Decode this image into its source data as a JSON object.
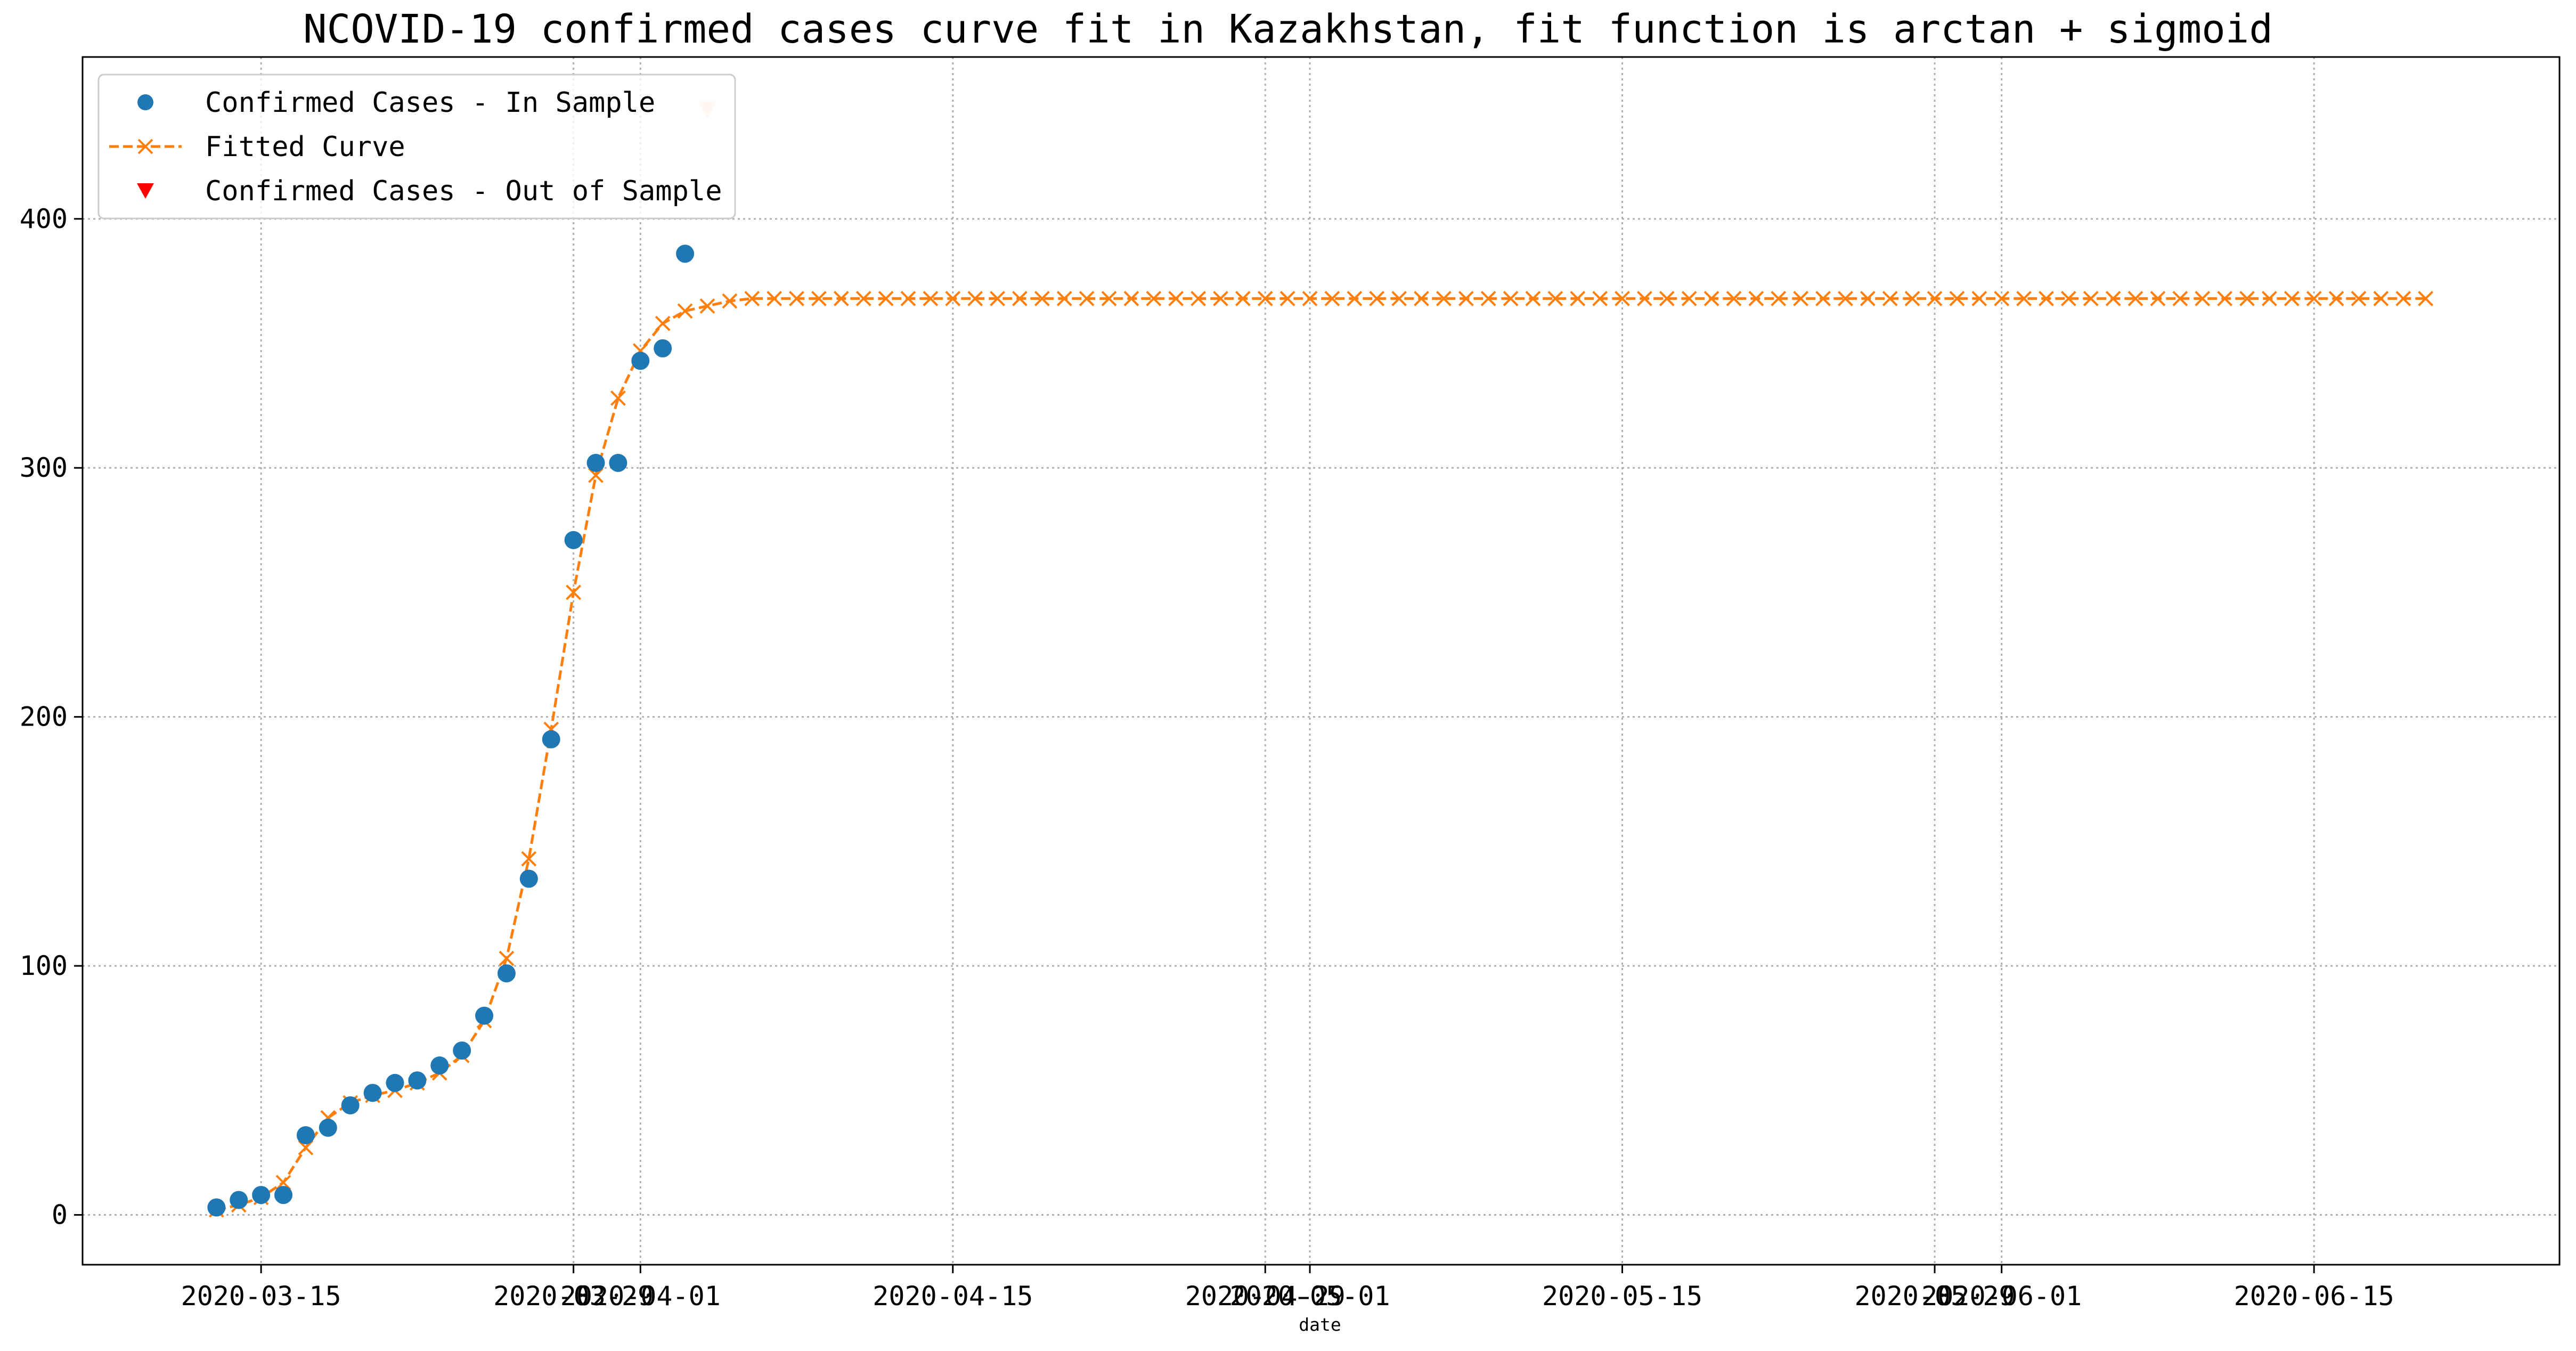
{
  "chart_data": {
    "type": "line",
    "title": "NCOVID-19 confirmed cases curve fit in Kazakhstan, fit function is arctan + sigmoid",
    "xlabel": "date",
    "ylabel": "",
    "x_type": "date",
    "xlim": [
      "2020-03-07",
      "2020-06-26"
    ],
    "ylim": [
      -20,
      465
    ],
    "grid": true,
    "legend_position": "top-left",
    "x_ticks": [
      {
        "value": "2020-03-15",
        "label": "2020-03-15"
      },
      {
        "value": "2020-03-29",
        "label": "2020-03-29"
      },
      {
        "value": "2020-04-01",
        "label": "2020-04-01"
      },
      {
        "value": "2020-04-15",
        "label": "2020-04-15"
      },
      {
        "value": "2020-04-29",
        "label": "2020-04-29"
      },
      {
        "value": "2020-05-01",
        "label": "2020-05-01"
      },
      {
        "value": "2020-05-15",
        "label": "2020-05-15"
      },
      {
        "value": "2020-05-29",
        "label": "2020-05-29"
      },
      {
        "value": "2020-06-01",
        "label": "2020-06-01"
      },
      {
        "value": "2020-06-15",
        "label": "2020-06-15"
      }
    ],
    "y_ticks": [
      0,
      100,
      200,
      300,
      400
    ],
    "series": [
      {
        "name": "Confirmed Cases - In Sample",
        "marker": "circle",
        "color": "#1f77b4",
        "x": [
          "2020-03-13",
          "2020-03-14",
          "2020-03-15",
          "2020-03-16",
          "2020-03-17",
          "2020-03-18",
          "2020-03-19",
          "2020-03-20",
          "2020-03-21",
          "2020-03-22",
          "2020-03-23",
          "2020-03-24",
          "2020-03-25",
          "2020-03-26",
          "2020-03-27",
          "2020-03-28",
          "2020-03-29",
          "2020-03-30",
          "2020-03-31",
          "2020-04-01",
          "2020-04-02",
          "2020-04-03"
        ],
        "y": [
          3,
          6,
          8,
          8,
          32,
          35,
          44,
          49,
          53,
          54,
          60,
          66,
          80,
          97,
          135,
          191,
          271,
          302,
          302,
          343,
          348,
          386
        ]
      },
      {
        "name": "Fitted Curve",
        "marker": "x",
        "line_style": "dashed",
        "color": "#ff7f0e",
        "start": "2020-03-13",
        "end": "2020-06-20",
        "y_start": [
          2,
          4,
          7,
          13,
          27,
          39,
          45,
          48,
          50,
          53,
          57,
          64,
          78,
          103,
          143,
          195,
          250,
          297,
          328,
          347,
          358,
          363,
          365,
          367,
          368
        ],
        "plateau": 368
      },
      {
        "name": "Confirmed Cases - Out of Sample",
        "marker": "triangle-down",
        "color": "#ff0000",
        "x": [
          "2020-04-04"
        ],
        "y": [
          444
        ]
      }
    ]
  }
}
